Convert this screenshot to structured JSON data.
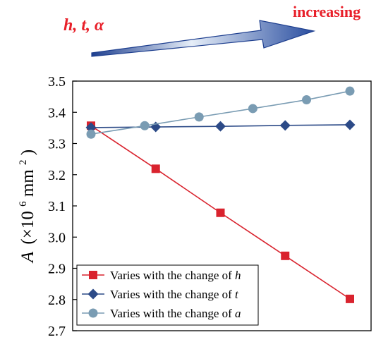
{
  "annotation": {
    "variables_label": "h, t, α",
    "direction_label": "increasing",
    "text_color": "#e8202a",
    "arrow_color": "#1e3f8f"
  },
  "chart_data": {
    "type": "line",
    "ylabel": {
      "prefix": "A",
      "unit_open": "(×10",
      "exponent": "6",
      "unit_mid": " mm",
      "unit_exponent": "2",
      "unit_close": ")"
    },
    "ylim": [
      2.7,
      3.5
    ],
    "yticks": [
      "2.7",
      "2.8",
      "2.9",
      "3.0",
      "3.1",
      "3.2",
      "3.3",
      "3.4",
      "3.5"
    ],
    "grid": false,
    "legend_position": "bottom-left",
    "series": [
      {
        "name": "Varies with the change of h",
        "name_prefix": "Varies with the change of ",
        "variable": "h",
        "marker": "square",
        "color": "#d9232e",
        "x": [
          1,
          2,
          3,
          4,
          5
        ],
        "y": [
          3.357,
          3.219,
          3.078,
          2.94,
          2.802
        ]
      },
      {
        "name": "Varies with the change of t",
        "name_prefix": "Varies with the change of ",
        "variable": "t",
        "marker": "diamond",
        "color": "#2c4a87",
        "x": [
          1,
          2,
          3,
          4,
          5
        ],
        "y": [
          3.351,
          3.353,
          3.355,
          3.358,
          3.36
        ]
      },
      {
        "name": "Varies with the change of a",
        "name_prefix": "Varies with the change of ",
        "variable": "a",
        "marker": "circle",
        "color": "#7a9cb3",
        "x": [
          1,
          1.83,
          2.67,
          3.5,
          4.33,
          5
        ],
        "y": [
          3.33,
          3.357,
          3.385,
          3.412,
          3.44,
          3.468
        ]
      }
    ]
  }
}
